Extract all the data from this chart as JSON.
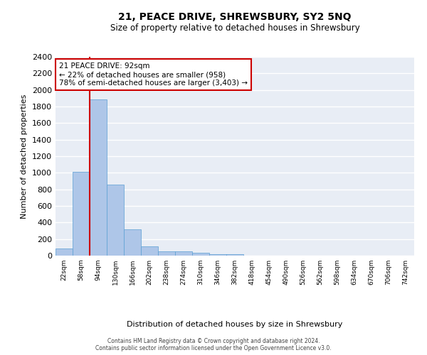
{
  "title": "21, PEACE DRIVE, SHREWSBURY, SY2 5NQ",
  "subtitle": "Size of property relative to detached houses in Shrewsbury",
  "xlabel": "Distribution of detached houses by size in Shrewsbury",
  "ylabel": "Number of detached properties",
  "bar_labels": [
    "22sqm",
    "58sqm",
    "94sqm",
    "130sqm",
    "166sqm",
    "202sqm",
    "238sqm",
    "274sqm",
    "310sqm",
    "346sqm",
    "382sqm",
    "418sqm",
    "454sqm",
    "490sqm",
    "526sqm",
    "562sqm",
    "598sqm",
    "634sqm",
    "670sqm",
    "706sqm",
    "742sqm"
  ],
  "bar_values": [
    90,
    1010,
    1890,
    860,
    320,
    110,
    55,
    50,
    35,
    20,
    20,
    0,
    0,
    0,
    0,
    0,
    0,
    0,
    0,
    0,
    0
  ],
  "bar_color": "#aec6e8",
  "bar_edge_color": "#5a9fd4",
  "red_line_index": 1.5,
  "annotation_text": "21 PEACE DRIVE: 92sqm\n← 22% of detached houses are smaller (958)\n78% of semi-detached houses are larger (3,403) →",
  "annotation_box_color": "#ffffff",
  "annotation_box_edge_color": "#cc0000",
  "red_line_color": "#cc0000",
  "ylim": [
    0,
    2400
  ],
  "yticks": [
    0,
    200,
    400,
    600,
    800,
    1000,
    1200,
    1400,
    1600,
    1800,
    2000,
    2200,
    2400
  ],
  "background_color": "#e8edf5",
  "grid_color": "#ffffff",
  "footer_line1": "Contains HM Land Registry data © Crown copyright and database right 2024.",
  "footer_line2": "Contains public sector information licensed under the Open Government Licence v3.0."
}
